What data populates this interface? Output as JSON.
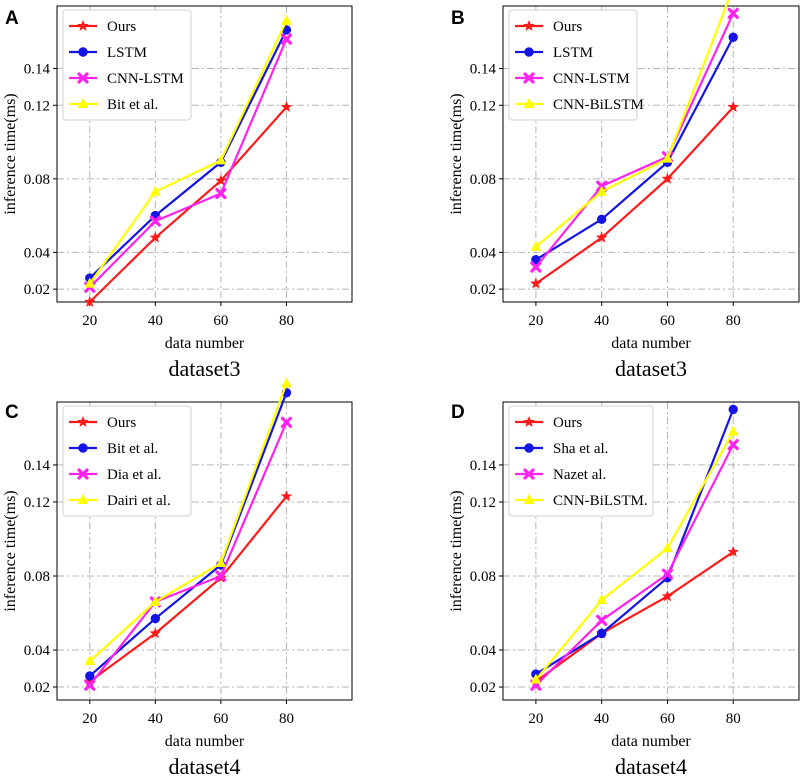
{
  "colors": {
    "red": "#ff1a1a",
    "blue": "#1414e6",
    "magenta": "#ff22ee",
    "yellow": "#ffff00",
    "grid": "#b5b5b5"
  },
  "chart_data": [
    {
      "panel": "A",
      "type": "line",
      "subtitle": "dataset3",
      "xlabel": "data number",
      "ylabel": "inference time(ms)",
      "x": [
        20,
        40,
        60,
        80
      ],
      "xticks": [
        20,
        40,
        60,
        80
      ],
      "yticks": [
        0.02,
        0.04,
        0.08,
        0.12,
        0.14
      ],
      "ytick_labels": [
        "0.02",
        "0.04",
        "0.08",
        "0.12",
        "0.14"
      ],
      "xlim": [
        10,
        100
      ],
      "ylim": [
        0.013,
        0.174
      ],
      "grid": true,
      "legend_position": "top-left",
      "series": [
        {
          "name": "Ours",
          "color": "#ff1a1a",
          "marker": "star",
          "values": [
            0.013,
            0.048,
            0.079,
            0.119
          ]
        },
        {
          "name": "LSTM",
          "color": "#1414e6",
          "marker": "circle",
          "values": [
            0.026,
            0.06,
            0.089,
            0.161
          ]
        },
        {
          "name": "CNN-LSTM",
          "color": "#ff22ee",
          "marker": "x",
          "values": [
            0.021,
            0.057,
            0.072,
            0.156
          ]
        },
        {
          "name": "Bit et al.",
          "color": "#ffff00",
          "marker": "triangle",
          "values": [
            0.023,
            0.073,
            0.09,
            0.166
          ]
        }
      ]
    },
    {
      "panel": "B",
      "type": "line",
      "subtitle": "dataset3",
      "xlabel": "data number",
      "ylabel": "inference time(ms)",
      "x": [
        20,
        40,
        60,
        80
      ],
      "xticks": [
        20,
        40,
        60,
        80
      ],
      "yticks": [
        0.02,
        0.04,
        0.08,
        0.12,
        0.14
      ],
      "ytick_labels": [
        "0.02",
        "0.04",
        "0.08",
        "0.12",
        "0.14"
      ],
      "xlim": [
        10,
        100
      ],
      "ylim": [
        0.013,
        0.174
      ],
      "grid": true,
      "legend_position": "top-left",
      "series": [
        {
          "name": "Ours",
          "color": "#ff1a1a",
          "marker": "star",
          "values": [
            0.023,
            0.048,
            0.08,
            0.119
          ]
        },
        {
          "name": "LSTM",
          "color": "#1414e6",
          "marker": "circle",
          "values": [
            0.036,
            0.058,
            0.089,
            0.157
          ]
        },
        {
          "name": "CNN-LSTM",
          "color": "#ff22ee",
          "marker": "x",
          "values": [
            0.032,
            0.076,
            0.092,
            0.17
          ]
        },
        {
          "name": "CNN-BiLSTM",
          "color": "#ffff00",
          "marker": "triangle",
          "values": [
            0.043,
            0.073,
            0.091,
            0.184
          ]
        }
      ]
    },
    {
      "panel": "C",
      "type": "line",
      "subtitle": "dataset4",
      "xlabel": "data number",
      "ylabel": "inference time(ms)",
      "x": [
        20,
        40,
        60,
        80
      ],
      "xticks": [
        20,
        40,
        60,
        80
      ],
      "yticks": [
        0.02,
        0.04,
        0.08,
        0.12,
        0.14
      ],
      "ytick_labels": [
        "0.02",
        "0.04",
        "0.08",
        "0.12",
        "0.14"
      ],
      "xlim": [
        10,
        100
      ],
      "ylim": [
        0.013,
        0.174
      ],
      "grid": true,
      "legend_position": "top-left",
      "series": [
        {
          "name": "Ours",
          "color": "#ff1a1a",
          "marker": "star",
          "values": [
            0.023,
            0.049,
            0.079,
            0.123
          ]
        },
        {
          "name": "Bit et al.",
          "color": "#1414e6",
          "marker": "circle",
          "values": [
            0.026,
            0.057,
            0.086,
            0.179
          ]
        },
        {
          "name": "Dia et al.",
          "color": "#ff22ee",
          "marker": "x",
          "values": [
            0.021,
            0.066,
            0.08,
            0.163
          ]
        },
        {
          "name": "Dairi et al.",
          "color": "#ffff00",
          "marker": "triangle",
          "values": [
            0.034,
            0.066,
            0.087,
            0.184
          ]
        }
      ]
    },
    {
      "panel": "D",
      "type": "line",
      "subtitle": "dataset4",
      "xlabel": "data number",
      "ylabel": "inference time(ms)",
      "x": [
        20,
        40,
        60,
        80
      ],
      "xticks": [
        20,
        40,
        60,
        80
      ],
      "yticks": [
        0.02,
        0.04,
        0.08,
        0.12,
        0.14
      ],
      "ytick_labels": [
        "0.02",
        "0.04",
        "0.08",
        "0.12",
        "0.14"
      ],
      "xlim": [
        10,
        100
      ],
      "ylim": [
        0.013,
        0.174
      ],
      "grid": true,
      "legend_position": "top-left",
      "series": [
        {
          "name": "Ours",
          "color": "#ff1a1a",
          "marker": "star",
          "values": [
            0.023,
            0.049,
            0.069,
            0.093
          ]
        },
        {
          "name": "Sha et al.",
          "color": "#1414e6",
          "marker": "circle",
          "values": [
            0.027,
            0.049,
            0.079,
            0.17
          ]
        },
        {
          "name": "Nazet al.",
          "color": "#ff22ee",
          "marker": "x",
          "values": [
            0.021,
            0.056,
            0.081,
            0.151
          ]
        },
        {
          "name": "CNN-BiLSTM.",
          "color": "#ffff00",
          "marker": "triangle",
          "values": [
            0.024,
            0.067,
            0.095,
            0.158
          ]
        }
      ]
    }
  ]
}
